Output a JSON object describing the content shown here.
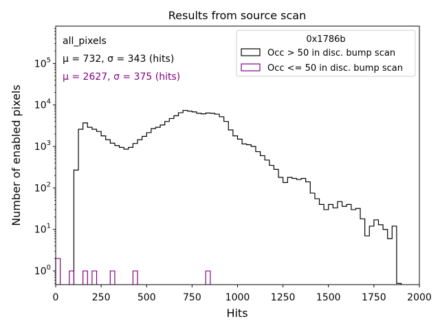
{
  "chart_data": {
    "type": "histogram",
    "title": "Results from source scan",
    "xlabel": "Hits",
    "ylabel": "Number of enabled pixels",
    "xlim": [
      0,
      2000
    ],
    "ylim_log10": [
      -0.33,
      5.9
    ],
    "y_scale": "log",
    "bin_width": 25,
    "x_ticks": [
      0,
      250,
      500,
      750,
      1000,
      1250,
      1500,
      1750,
      2000
    ],
    "x_tick_labels": [
      "0",
      "250",
      "500",
      "750",
      "1000",
      "1250",
      "1500",
      "1750",
      "2000"
    ],
    "y_ticks": [
      0,
      1,
      2,
      3,
      4,
      5
    ],
    "legend": {
      "title": "0x1786b",
      "placement": "top-right",
      "entries": [
        {
          "label": "Occ > 50 in disc. bump scan",
          "color": "#000000"
        },
        {
          "label": "Occ <= 50 in disc. bump scan",
          "color": "#800080"
        }
      ]
    },
    "annotations": [
      {
        "text": "all_pixels",
        "color": "#000000"
      },
      {
        "text": "μ = 732, σ = 343 (hits)",
        "color": "#000000"
      },
      {
        "text": "μ = 2627, σ = 375 (hits)",
        "color": "#800080"
      }
    ],
    "series": [
      {
        "name": "Occ > 50 in disc. bump scan",
        "color": "#000000",
        "bin_start": 100,
        "values": [
          270,
          2600,
          3700,
          2900,
          2600,
          2300,
          1800,
          1450,
          1200,
          1050,
          950,
          860,
          950,
          1180,
          1450,
          1750,
          2150,
          2700,
          2900,
          3300,
          4000,
          4700,
          5500,
          6500,
          7400,
          7100,
          6800,
          6300,
          6100,
          6400,
          6300,
          6000,
          5200,
          4000,
          2500,
          1800,
          1500,
          1150,
          1100,
          1000,
          750,
          600,
          470,
          350,
          280,
          180,
          135,
          180,
          170,
          160,
          170,
          140,
          75,
          55,
          40,
          30,
          40,
          33,
          47,
          36,
          40,
          30,
          32,
          18,
          7,
          12,
          17,
          13,
          10,
          6,
          12,
          0.5
        ]
      },
      {
        "name": "Occ <= 50 in disc. bump scan",
        "color": "#800080",
        "bins": [
          {
            "x0": 0,
            "value": 2
          },
          {
            "x0": 75,
            "value": 1
          },
          {
            "x0": 150,
            "value": 1
          },
          {
            "x0": 200,
            "value": 1
          },
          {
            "x0": 300,
            "value": 1
          },
          {
            "x0": 425,
            "value": 1
          },
          {
            "x0": 825,
            "value": 1
          }
        ]
      }
    ]
  }
}
